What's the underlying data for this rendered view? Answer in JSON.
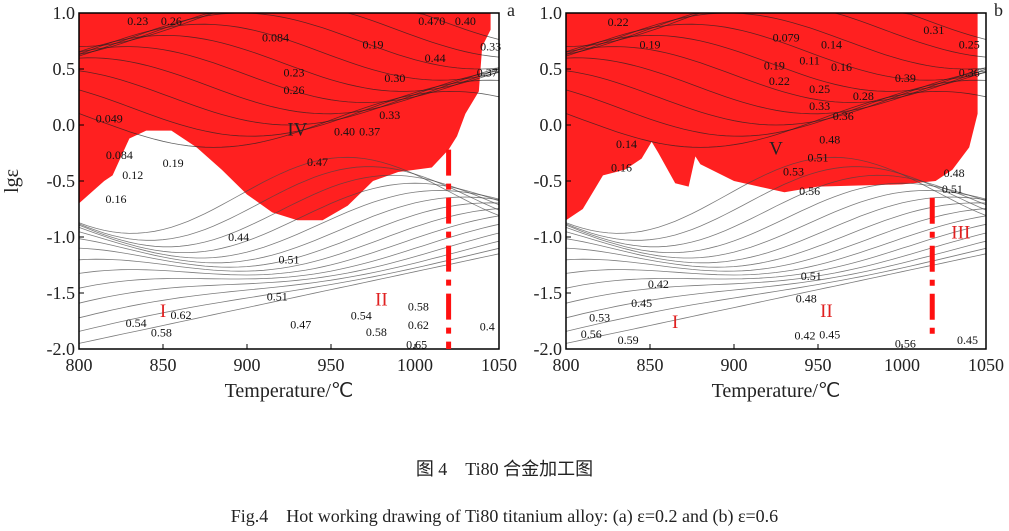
{
  "chart_data": [
    {
      "type": "contour",
      "panel_label": "a",
      "xlabel": "Temperature/℃",
      "ylabel": "lgε",
      "xlim": [
        800,
        1050
      ],
      "ylim": [
        -2.0,
        1.0
      ],
      "xticks": [
        "800",
        "850",
        "900",
        "950",
        "1000",
        "1050"
      ],
      "yticks": [
        "1.0",
        "0.5",
        "0.0",
        "-0.5",
        "-1.0",
        "-1.5",
        "-2.0"
      ],
      "instability_color": "#ff2020",
      "instability_boundary": [
        [
          800,
          1.0
        ],
        [
          1045,
          1.0
        ],
        [
          1045,
          0.85
        ],
        [
          1040,
          0.7
        ],
        [
          1038,
          0.3
        ],
        [
          1030,
          0.1
        ],
        [
          1025,
          -0.1
        ],
        [
          1020,
          -0.22
        ],
        [
          1010,
          -0.38
        ],
        [
          990,
          -0.42
        ],
        [
          975,
          -0.5
        ],
        [
          960,
          -0.72
        ],
        [
          945,
          -0.85
        ],
        [
          930,
          -0.85
        ],
        [
          915,
          -0.78
        ],
        [
          900,
          -0.62
        ],
        [
          885,
          -0.4
        ],
        [
          870,
          -0.2
        ],
        [
          855,
          -0.05
        ],
        [
          840,
          -0.05
        ],
        [
          830,
          -0.12
        ],
        [
          820,
          -0.45
        ],
        [
          815,
          -0.5
        ],
        [
          800,
          -0.7
        ]
      ],
      "boundary_line": {
        "T": 1020,
        "from": -0.22,
        "to": -2.0
      },
      "regions": [
        {
          "label": "I",
          "T": 850,
          "lg": -1.65,
          "color": "#e02020"
        },
        {
          "label": "II",
          "T": 980,
          "lg": -1.55,
          "color": "#e02020"
        },
        {
          "label": "IV",
          "T": 930,
          "lg": -0.03,
          "color": "#222"
        }
      ],
      "contour_labels": [
        [
          "0.23",
          835,
          0.93
        ],
        [
          "0.26",
          855,
          0.93
        ],
        [
          "0.084",
          917,
          0.78
        ],
        [
          "0.19",
          975,
          0.72
        ],
        [
          "0.470",
          1010,
          0.93
        ],
        [
          "0.40",
          1030,
          0.93
        ],
        [
          "0.44",
          1012,
          0.6
        ],
        [
          "0.33",
          1045,
          0.7
        ],
        [
          "0.37",
          1043,
          0.47
        ],
        [
          "0.23",
          928,
          0.47
        ],
        [
          "0.26",
          928,
          0.4
        ],
        [
          "0.30",
          988,
          0.42
        ],
        [
          "0.049",
          818,
          0.06
        ],
        [
          "0.33",
          985,
          0.09
        ],
        [
          "0.40",
          958,
          -0.06
        ],
        [
          "0.37",
          973,
          -0.06
        ],
        [
          "0.47",
          942,
          -0.33
        ],
        [
          "0.084",
          824,
          -0.27
        ],
        [
          "0.12",
          832,
          -0.4
        ],
        [
          "0.19",
          856,
          -0.34
        ],
        [
          "0.16",
          822,
          -0.66
        ],
        [
          "0.44",
          895,
          -1.0
        ],
        [
          "0.51",
          925,
          -1.2
        ],
        [
          "0.51",
          918,
          -1.53
        ],
        [
          "0.47",
          932,
          -1.78
        ],
        [
          "0.54",
          968,
          -1.7
        ],
        [
          "0.58",
          977,
          -1.85
        ],
        [
          "0.58",
          1002,
          -1.62
        ],
        [
          "0.62",
          1002,
          -1.74
        ],
        [
          "0.65",
          1001,
          -1.87
        ],
        [
          "0.4",
          1043,
          -1.8
        ],
        [
          "0.54",
          834,
          -1.77
        ],
        [
          "0.58",
          849,
          -1.72
        ],
        [
          "0.62",
          850,
          -1.83
        ]
      ]
    },
    {
      "type": "contour",
      "panel_label": "b",
      "xlabel": "Temperature/℃",
      "ylabel": "",
      "xlim": [
        800,
        1050
      ],
      "ylim": [
        -2.0,
        1.0
      ],
      "xticks": [
        "800",
        "850",
        "900",
        "950",
        "1000",
        "1050"
      ],
      "yticks": [
        "1.0",
        "0.5",
        "0.0",
        "-0.5",
        "-1.0",
        "-1.5",
        "-2.0"
      ],
      "instability_color": "#ff2020",
      "instability_boundary": [
        [
          800,
          1.0
        ],
        [
          1045,
          1.0
        ],
        [
          1045,
          0.1
        ],
        [
          1040,
          -0.2
        ],
        [
          1030,
          -0.4
        ],
        [
          1020,
          -0.5
        ],
        [
          1000,
          -0.53
        ],
        [
          950,
          -0.55
        ],
        [
          930,
          -0.6
        ],
        [
          900,
          -0.5
        ],
        [
          880,
          -0.35
        ],
        [
          877,
          -0.28
        ],
        [
          873,
          -0.55
        ],
        [
          865,
          -0.52
        ],
        [
          855,
          -0.25
        ],
        [
          851,
          -0.15
        ],
        [
          845,
          -0.3
        ],
        [
          835,
          -0.4
        ],
        [
          822,
          -0.45
        ],
        [
          818,
          -0.55
        ],
        [
          810,
          -0.75
        ],
        [
          800,
          -0.85
        ]
      ],
      "boundary_line": {
        "T": 1018,
        "from": -0.65,
        "to": -1.9
      },
      "regions": [
        {
          "label": "I",
          "T": 865,
          "lg": -1.75,
          "color": "#e02020"
        },
        {
          "label": "II",
          "T": 955,
          "lg": -1.65,
          "color": "#e02020"
        },
        {
          "label": "III",
          "T": 1035,
          "lg": -0.95,
          "color": "#e02020"
        },
        {
          "label": "V",
          "T": 925,
          "lg": -0.2,
          "color": "#222"
        }
      ],
      "contour_labels": [
        [
          "0.22",
          831,
          0.92
        ],
        [
          "0.19",
          850,
          0.72
        ],
        [
          "0.079",
          931,
          0.78
        ],
        [
          "0.14",
          958,
          0.72
        ],
        [
          "0.11",
          945,
          0.62
        ],
        [
          "0.16",
          964,
          0.52
        ],
        [
          "0.19",
          924,
          0.53
        ],
        [
          "0.22",
          927,
          0.48
        ],
        [
          "0.39",
          1002,
          0.42
        ],
        [
          "0.31",
          1019,
          0.85
        ],
        [
          "0.25",
          1040,
          0.72
        ],
        [
          "0.36",
          1040,
          0.47
        ],
        [
          "0.25",
          951,
          0.32
        ],
        [
          "0.28",
          977,
          0.26
        ],
        [
          "0.33",
          951,
          0.17
        ],
        [
          "0.36",
          965,
          0.08
        ],
        [
          "0.14",
          836,
          -0.17
        ],
        [
          "0.16",
          833,
          -0.38
        ],
        [
          "0.48",
          957,
          -0.13
        ],
        [
          "0.51",
          950,
          -0.2
        ],
        [
          "0.53",
          939,
          -0.37
        ],
        [
          "0.56",
          945,
          -0.5
        ],
        [
          "0.48",
          1031,
          -0.43
        ],
        [
          "0.51",
          1030,
          -0.57
        ],
        [
          "0.42",
          855,
          -1.42
        ],
        [
          "0.45",
          845,
          -1.5
        ],
        [
          "0.53",
          820,
          -1.72
        ],
        [
          "0.56",
          815,
          -1.82
        ],
        [
          "0.59",
          837,
          -1.92
        ],
        [
          "0.51",
          946,
          -1.35
        ],
        [
          "0.48",
          943,
          -1.55
        ],
        [
          "0.45",
          957,
          -1.78
        ],
        [
          "0.42",
          953,
          -1.88
        ],
        [
          "0.56",
          1002,
          -1.95
        ],
        [
          "0.45",
          1039,
          -1.92
        ]
      ]
    }
  ],
  "caption": {
    "cn": "图 4　Ti80 合金加工图",
    "en": "Fig.4　Hot working drawing of Ti80 titanium alloy: (a) ε=0.2 and (b) ε=0.6"
  }
}
